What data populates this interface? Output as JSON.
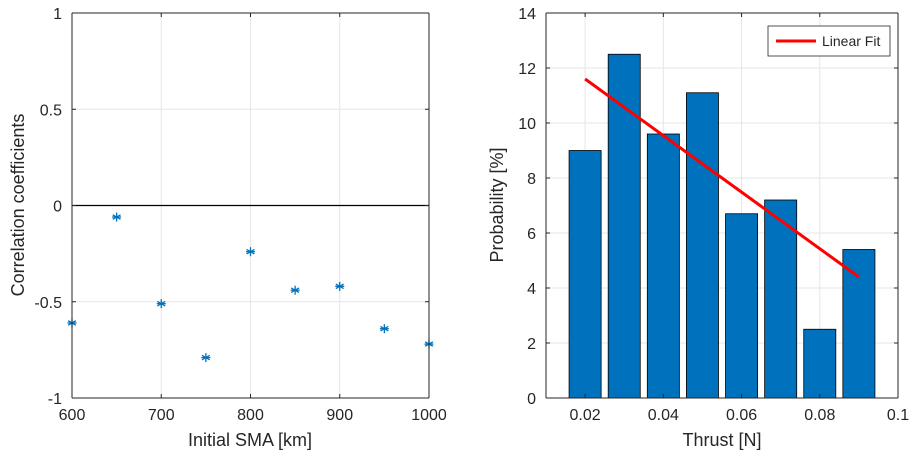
{
  "colors": {
    "grid": "#e6e6e6",
    "axis": "#262626",
    "marker": "#0072bd",
    "bar_fill": "#0072bd",
    "bar_edge": "#000000",
    "fit_line": "#ff0000",
    "zero_line": "#000000"
  },
  "chart_data": [
    {
      "type": "scatter",
      "title": "",
      "xlabel": "Initial SMA [km]",
      "ylabel": "Correlation coefficients",
      "xlim": [
        600,
        1000
      ],
      "ylim": [
        -1,
        1
      ],
      "xticks": [
        600,
        700,
        800,
        900,
        1000
      ],
      "xtick_labels": [
        "600",
        "700",
        "800",
        "900",
        "1000"
      ],
      "yticks": [
        -1,
        -0.5,
        0,
        0.5,
        1
      ],
      "ytick_labels": [
        "-1",
        "-0.5",
        "0",
        "0.5",
        "1"
      ],
      "grid": true,
      "marker": "*",
      "reference_line_y": 0,
      "x": [
        600,
        650,
        700,
        750,
        800,
        850,
        900,
        950,
        1000
      ],
      "y": [
        -0.61,
        -0.06,
        -0.51,
        -0.79,
        -0.24,
        -0.44,
        -0.42,
        -0.64,
        -0.72
      ]
    },
    {
      "type": "bar",
      "title": "",
      "xlabel": "Thrust [N]",
      "ylabel": "Probability [%]",
      "xlim": [
        0.01,
        0.1
      ],
      "ylim": [
        0,
        14
      ],
      "xticks": [
        0.02,
        0.04,
        0.06,
        0.08,
        0.1
      ],
      "xtick_labels": [
        "0.02",
        "0.04",
        "0.06",
        "0.08",
        "0.1"
      ],
      "yticks": [
        0,
        2,
        4,
        6,
        8,
        10,
        12,
        14
      ],
      "ytick_labels": [
        "0",
        "2",
        "4",
        "6",
        "8",
        "10",
        "12",
        "14"
      ],
      "grid": true,
      "x": [
        0.02,
        0.03,
        0.04,
        0.05,
        0.06,
        0.07,
        0.08,
        0.09
      ],
      "values": [
        9.0,
        12.5,
        9.6,
        11.1,
        6.7,
        7.2,
        2.5,
        5.4
      ],
      "bar_width": 0.0082,
      "fit": {
        "name": "Linear Fit",
        "x": [
          0.02,
          0.09
        ],
        "y": [
          11.6,
          4.4
        ]
      },
      "legend": {
        "entries": [
          "Linear Fit"
        ],
        "location": "top-right"
      }
    }
  ]
}
